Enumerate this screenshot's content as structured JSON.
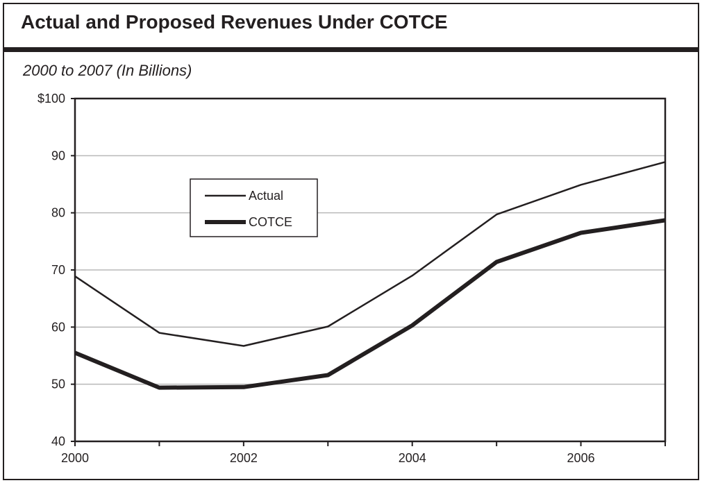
{
  "header": {
    "title": "Actual and Proposed Revenues Under COTCE",
    "subtitle": "2000 to 2007 (In Billions)"
  },
  "colors": {
    "ink": "#231f20",
    "grid": "#b9b9b9",
    "background": "#ffffff"
  },
  "chart_data": {
    "type": "line",
    "title": "Actual and Proposed Revenues Under COTCE",
    "subtitle": "2000 to 2007 (In Billions)",
    "xlabel": "",
    "ylabel": "",
    "x": [
      2000,
      2001,
      2002,
      2003,
      2004,
      2005,
      2006,
      2007
    ],
    "xlim": [
      2000,
      2007
    ],
    "ylim": [
      40,
      100
    ],
    "x_ticks": [
      2000,
      2001,
      2002,
      2003,
      2004,
      2005,
      2006,
      2007
    ],
    "x_tick_labels": [
      "2000",
      "",
      "2002",
      "",
      "2004",
      "",
      "2006",
      ""
    ],
    "y_ticks": [
      40,
      50,
      60,
      70,
      80,
      90,
      100
    ],
    "y_tick_labels": [
      "40",
      "50",
      "60",
      "70",
      "80",
      "90",
      "$100"
    ],
    "grid": true,
    "legend_position": "upper-left inside plot",
    "series": [
      {
        "name": "Actual",
        "style": "thin",
        "values": [
          68.9,
          59.0,
          56.7,
          60.1,
          69.0,
          79.7,
          84.9,
          88.9
        ]
      },
      {
        "name": "COTCE",
        "style": "thick",
        "values": [
          55.5,
          49.4,
          49.5,
          51.6,
          60.3,
          71.4,
          76.5,
          78.7
        ]
      }
    ]
  }
}
